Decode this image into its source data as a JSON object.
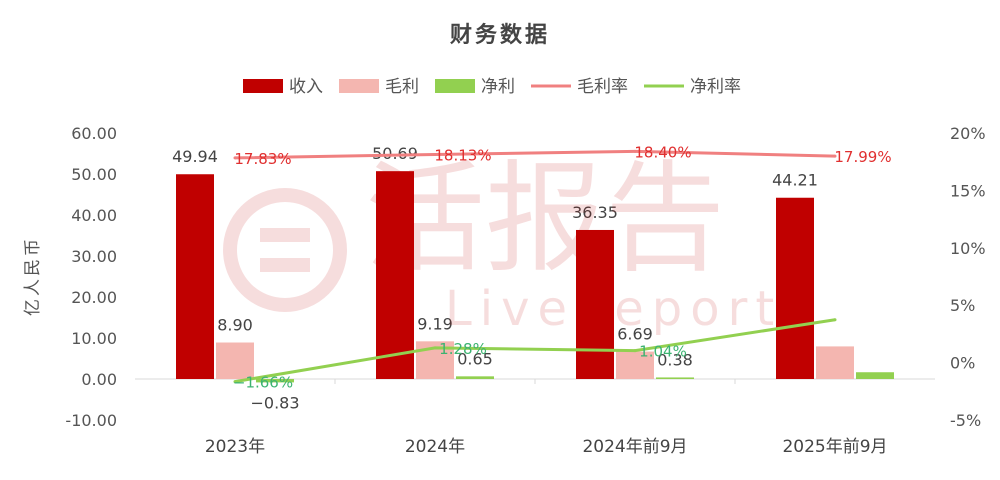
{
  "chart_data": {
    "type": "bar",
    "title": "财务数据",
    "ylabel": "亿人民币",
    "categories": [
      "2023年",
      "2024年",
      "2024年前9月",
      "2025年前9月"
    ],
    "ylim": [
      -10,
      60
    ],
    "y_ticks": [
      "-10.00",
      "0.00",
      "10.00",
      "20.00",
      "30.00",
      "40.00",
      "50.00",
      "60.00"
    ],
    "y2lim": [
      -5,
      20
    ],
    "y2_ticks": [
      "-5%",
      "0%",
      "5%",
      "10%",
      "15%",
      "20%"
    ],
    "legend_position": "top",
    "series": [
      {
        "name": "收入",
        "kind": "bar",
        "axis": "left",
        "color": "#c00000",
        "values": [
          49.94,
          50.69,
          36.35,
          44.21
        ],
        "labels": [
          "49.94",
          "50.69",
          "36.35",
          "44.21"
        ]
      },
      {
        "name": "毛利",
        "kind": "bar",
        "axis": "left",
        "color": "#f4b6b0",
        "values": [
          8.9,
          9.19,
          6.69,
          7.95
        ],
        "labels": [
          "8.90",
          "9.19",
          "6.69",
          ""
        ]
      },
      {
        "name": "净利",
        "kind": "bar",
        "axis": "left",
        "color": "#92d050",
        "values": [
          -0.83,
          0.65,
          0.38,
          1.65
        ],
        "labels": [
          "−0.83",
          "0.65",
          "0.38",
          ""
        ]
      },
      {
        "name": "毛利率",
        "kind": "line",
        "axis": "right",
        "color": "#f08080",
        "values": [
          17.83,
          18.13,
          18.4,
          17.99
        ],
        "labels": [
          "17.83%",
          "18.13%",
          "18.40%",
          "17.99%"
        ]
      },
      {
        "name": "净利率",
        "kind": "line",
        "axis": "right",
        "color": "#92d050",
        "values": [
          -1.66,
          1.28,
          1.04,
          3.73
        ],
        "labels": [
          "−1.66%",
          "1.28%",
          "1.04%",
          ""
        ]
      }
    ]
  },
  "watermark": {
    "text": "活报告",
    "subtext": "LiveReport"
  }
}
